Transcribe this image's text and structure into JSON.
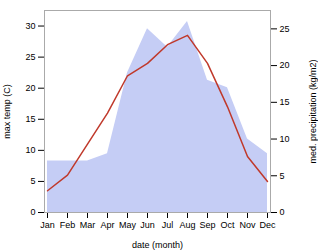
{
  "chart_data": {
    "type": "line",
    "xlabel": "date (month)",
    "ylabel": "max temp (C)",
    "y2label": "med. precipitation (kg/m2)",
    "categories": [
      "Jan",
      "Feb",
      "Mar",
      "Apr",
      "May",
      "Jun",
      "Jul",
      "Aug",
      "Sep",
      "Oct",
      "Nov",
      "Dec"
    ],
    "series": [
      {
        "type": "area",
        "axis": "y2",
        "color": "#c5cdf5",
        "values": [
          7.0,
          7.0,
          7.0,
          8.0,
          19.0,
          25.0,
          22.5,
          26.0,
          18.0,
          17.0,
          10.0,
          8.0
        ]
      },
      {
        "type": "line",
        "color": "#c0392b",
        "values": [
          3.5,
          6.0,
          11.0,
          16.0,
          22.0,
          24.0,
          27.0,
          28.5,
          24.0,
          17.0,
          9.0,
          5.0
        ]
      }
    ],
    "ylim": [
      0,
      32.5
    ],
    "yticks": [
      0,
      5,
      10,
      15,
      20,
      25,
      30
    ],
    "y2lim": [
      0,
      27.5
    ],
    "y2ticks": [
      0,
      5,
      10,
      15,
      20,
      25
    ],
    "grid": false
  }
}
